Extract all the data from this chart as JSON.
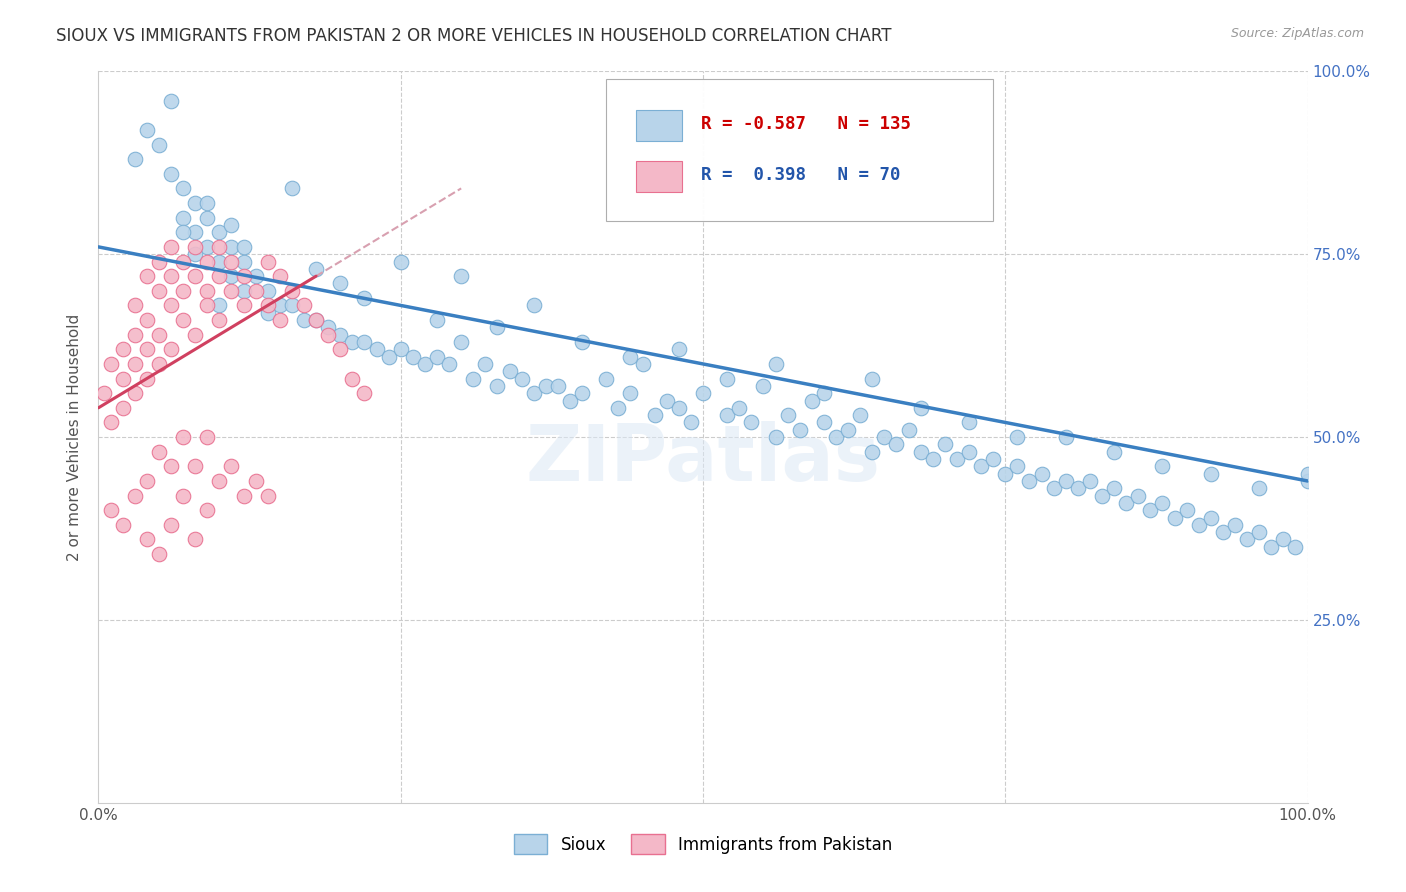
{
  "title": "SIOUX VS IMMIGRANTS FROM PAKISTAN 2 OR MORE VEHICLES IN HOUSEHOLD CORRELATION CHART",
  "source": "Source: ZipAtlas.com",
  "ylabel": "2 or more Vehicles in Household",
  "x_min": 0.0,
  "x_max": 1.0,
  "y_min": 0.0,
  "y_max": 1.0,
  "sioux_color": "#b8d4ea",
  "sioux_edge_color": "#7bafd4",
  "pakistan_color": "#f4b8c8",
  "pakistan_edge_color": "#e87090",
  "sioux_R": -0.587,
  "sioux_N": 135,
  "pakistan_R": 0.398,
  "pakistan_N": 70,
  "trend_sioux_color": "#3a7fc1",
  "trend_pakistan_color": "#d04060",
  "trend_pakistan_dashed_color": "#d8a0b0",
  "watermark": "ZIPatlas",
  "legend_label_sioux": "Sioux",
  "legend_label_pakistan": "Immigrants from Pakistan",
  "sioux_trend_x0": 0.0,
  "sioux_trend_y0": 0.76,
  "sioux_trend_x1": 1.0,
  "sioux_trend_y1": 0.44,
  "pakistan_trend_x0": 0.0,
  "pakistan_trend_y0": 0.54,
  "pakistan_trend_x1": 0.18,
  "pakistan_trend_y1": 0.72,
  "sioux_x": [
    0.03,
    0.04,
    0.05,
    0.06,
    0.07,
    0.07,
    0.08,
    0.08,
    0.09,
    0.09,
    0.1,
    0.1,
    0.11,
    0.11,
    0.12,
    0.12,
    0.13,
    0.14,
    0.15,
    0.16,
    0.17,
    0.18,
    0.19,
    0.2,
    0.21,
    0.22,
    0.23,
    0.24,
    0.25,
    0.26,
    0.27,
    0.28,
    0.29,
    0.3,
    0.31,
    0.32,
    0.33,
    0.34,
    0.35,
    0.36,
    0.37,
    0.38,
    0.39,
    0.4,
    0.42,
    0.43,
    0.44,
    0.45,
    0.46,
    0.47,
    0.48,
    0.49,
    0.5,
    0.52,
    0.53,
    0.54,
    0.55,
    0.56,
    0.57,
    0.58,
    0.59,
    0.6,
    0.61,
    0.62,
    0.63,
    0.64,
    0.65,
    0.66,
    0.67,
    0.68,
    0.69,
    0.7,
    0.71,
    0.72,
    0.73,
    0.74,
    0.75,
    0.76,
    0.77,
    0.78,
    0.79,
    0.8,
    0.81,
    0.82,
    0.83,
    0.84,
    0.85,
    0.86,
    0.87,
    0.88,
    0.89,
    0.9,
    0.91,
    0.92,
    0.93,
    0.94,
    0.95,
    0.96,
    0.97,
    0.98,
    0.99,
    1.0,
    0.06,
    0.07,
    0.08,
    0.09,
    0.1,
    0.11,
    0.12,
    0.14,
    0.16,
    0.18,
    0.2,
    0.22,
    0.25,
    0.28,
    0.3,
    0.33,
    0.36,
    0.4,
    0.44,
    0.48,
    0.52,
    0.56,
    0.6,
    0.64,
    0.68,
    0.72,
    0.76,
    0.8,
    0.84,
    0.88,
    0.92,
    0.96,
    1.0
  ],
  "sioux_y": [
    0.88,
    0.92,
    0.9,
    0.86,
    0.84,
    0.8,
    0.82,
    0.78,
    0.8,
    0.76,
    0.78,
    0.74,
    0.76,
    0.72,
    0.74,
    0.7,
    0.72,
    0.7,
    0.68,
    0.68,
    0.66,
    0.66,
    0.65,
    0.64,
    0.63,
    0.63,
    0.62,
    0.61,
    0.62,
    0.61,
    0.6,
    0.61,
    0.6,
    0.63,
    0.58,
    0.6,
    0.57,
    0.59,
    0.58,
    0.56,
    0.57,
    0.57,
    0.55,
    0.56,
    0.58,
    0.54,
    0.56,
    0.6,
    0.53,
    0.55,
    0.54,
    0.52,
    0.56,
    0.53,
    0.54,
    0.52,
    0.57,
    0.5,
    0.53,
    0.51,
    0.55,
    0.52,
    0.5,
    0.51,
    0.53,
    0.48,
    0.5,
    0.49,
    0.51,
    0.48,
    0.47,
    0.49,
    0.47,
    0.48,
    0.46,
    0.47,
    0.45,
    0.46,
    0.44,
    0.45,
    0.43,
    0.44,
    0.43,
    0.44,
    0.42,
    0.43,
    0.41,
    0.42,
    0.4,
    0.41,
    0.39,
    0.4,
    0.38,
    0.39,
    0.37,
    0.38,
    0.36,
    0.37,
    0.35,
    0.36,
    0.35,
    0.44,
    0.96,
    0.78,
    0.75,
    0.82,
    0.68,
    0.79,
    0.76,
    0.67,
    0.84,
    0.73,
    0.71,
    0.69,
    0.74,
    0.66,
    0.72,
    0.65,
    0.68,
    0.63,
    0.61,
    0.62,
    0.58,
    0.6,
    0.56,
    0.58,
    0.54,
    0.52,
    0.5,
    0.5,
    0.48,
    0.46,
    0.45,
    0.43,
    0.45
  ],
  "pakistan_x": [
    0.005,
    0.01,
    0.01,
    0.02,
    0.02,
    0.02,
    0.03,
    0.03,
    0.03,
    0.03,
    0.04,
    0.04,
    0.04,
    0.04,
    0.05,
    0.05,
    0.05,
    0.05,
    0.06,
    0.06,
    0.06,
    0.06,
    0.07,
    0.07,
    0.07,
    0.08,
    0.08,
    0.08,
    0.09,
    0.09,
    0.09,
    0.1,
    0.1,
    0.1,
    0.11,
    0.11,
    0.12,
    0.12,
    0.13,
    0.14,
    0.14,
    0.15,
    0.15,
    0.16,
    0.17,
    0.18,
    0.19,
    0.2,
    0.21,
    0.22,
    0.01,
    0.02,
    0.03,
    0.04,
    0.04,
    0.05,
    0.05,
    0.06,
    0.06,
    0.07,
    0.07,
    0.08,
    0.08,
    0.09,
    0.09,
    0.1,
    0.11,
    0.12,
    0.13,
    0.14
  ],
  "pakistan_y": [
    0.56,
    0.52,
    0.6,
    0.54,
    0.62,
    0.58,
    0.56,
    0.64,
    0.6,
    0.68,
    0.62,
    0.66,
    0.72,
    0.58,
    0.64,
    0.7,
    0.74,
    0.6,
    0.68,
    0.72,
    0.76,
    0.62,
    0.7,
    0.74,
    0.66,
    0.72,
    0.76,
    0.64,
    0.7,
    0.74,
    0.68,
    0.72,
    0.66,
    0.76,
    0.7,
    0.74,
    0.68,
    0.72,
    0.7,
    0.68,
    0.74,
    0.72,
    0.66,
    0.7,
    0.68,
    0.66,
    0.64,
    0.62,
    0.58,
    0.56,
    0.4,
    0.38,
    0.42,
    0.44,
    0.36,
    0.48,
    0.34,
    0.46,
    0.38,
    0.5,
    0.42,
    0.46,
    0.36,
    0.5,
    0.4,
    0.44,
    0.46,
    0.42,
    0.44,
    0.42
  ]
}
